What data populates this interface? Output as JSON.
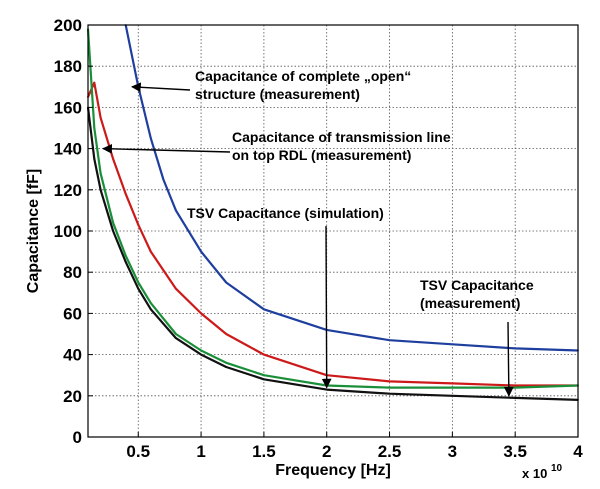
{
  "chart_data": {
    "type": "line",
    "xlabel": "Frequency [Hz]",
    "ylabel": "Capacitance [fF]",
    "x_exponent_label": "x 10",
    "x_exponent_power": "10",
    "xlim": [
      0.1,
      4.0
    ],
    "ylim": [
      0,
      200
    ],
    "x_ticks": [
      0.5,
      1,
      1.5,
      2,
      2.5,
      3,
      3.5,
      4
    ],
    "x_tick_labels": [
      "0.5",
      "1",
      "1.5",
      "2",
      "2.5",
      "3",
      "3.5",
      "4"
    ],
    "y_ticks": [
      0,
      20,
      40,
      60,
      80,
      100,
      120,
      140,
      160,
      180,
      200
    ],
    "y_tick_labels": [
      "0",
      "20",
      "40",
      "60",
      "80",
      "100",
      "120",
      "140",
      "160",
      "180",
      "200"
    ],
    "grid": true,
    "series": [
      {
        "color": "#1f3f9f",
        "x": [
          0.4,
          0.5,
          0.6,
          0.7,
          0.8,
          1.0,
          1.2,
          1.5,
          2.0,
          2.5,
          3.0,
          3.5,
          4.0
        ],
        "values": [
          200,
          170,
          145,
          125,
          110,
          90,
          75,
          62,
          52,
          47,
          45,
          43,
          42
        ]
      },
      {
        "color": "#cc1a1a",
        "x": [
          0.1,
          0.15,
          0.2,
          0.3,
          0.4,
          0.5,
          0.6,
          0.8,
          1.0,
          1.2,
          1.5,
          2.0,
          2.5,
          3.0,
          3.5,
          4.0
        ],
        "values": [
          165,
          172,
          155,
          135,
          118,
          103,
          90,
          72,
          60,
          50,
          40,
          30,
          27,
          26,
          25,
          25
        ]
      },
      {
        "color": "#111111",
        "x": [
          0.1,
          0.15,
          0.2,
          0.3,
          0.4,
          0.5,
          0.6,
          0.8,
          1.0,
          1.2,
          1.5,
          2.0,
          2.5,
          3.0,
          3.5,
          4.0
        ],
        "values": [
          160,
          135,
          120,
          100,
          85,
          72,
          62,
          48,
          40,
          34,
          28,
          23,
          21,
          20,
          19,
          18
        ]
      },
      {
        "color": "#1a8f3a",
        "x": [
          0.1,
          0.15,
          0.2,
          0.3,
          0.4,
          0.5,
          0.6,
          0.8,
          1.0,
          1.2,
          1.5,
          2.0,
          2.5,
          3.0,
          3.5,
          4.0
        ],
        "values": [
          198,
          150,
          128,
          104,
          88,
          75,
          65,
          50,
          42,
          36,
          30,
          25,
          24,
          24,
          24,
          25
        ]
      }
    ],
    "annotations": [
      {
        "lines": [
          "Capacitance of complete „open“",
          "structure (measurement)"
        ],
        "arrow_to": [
          0.45,
          170
        ]
      },
      {
        "lines": [
          "Capacitance of transmission line",
          "on top RDL (measurement)"
        ],
        "arrow_to": [
          0.22,
          140
        ]
      },
      {
        "lines": [
          "TSV Capacitance (simulation)"
        ],
        "arrow_to": [
          2.0,
          24
        ]
      },
      {
        "lines": [
          "TSV Capacitance",
          "(measurement)"
        ],
        "arrow_to": [
          3.45,
          20
        ]
      }
    ]
  }
}
